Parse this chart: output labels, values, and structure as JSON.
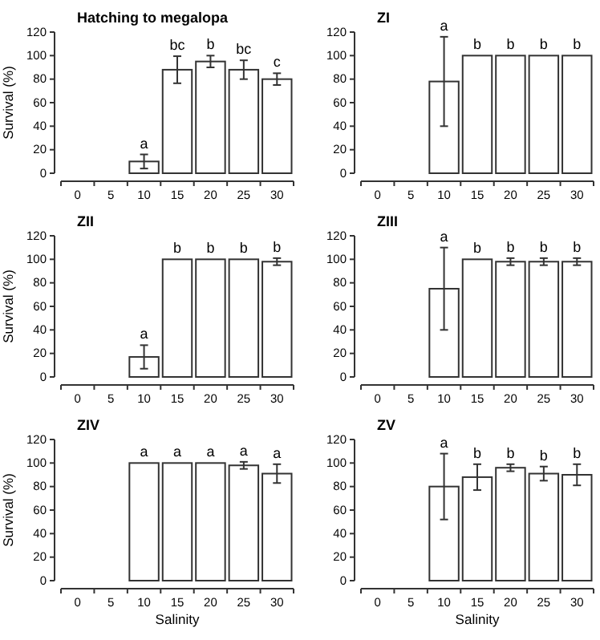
{
  "chart_data": [
    {
      "type": "bar",
      "title": "Hatching to megalopa",
      "ylabel": "Survival (%)",
      "categories": [
        "0",
        "5",
        "10",
        "15",
        "20",
        "25",
        "30"
      ],
      "values": [
        null,
        null,
        10,
        88,
        95,
        88,
        80
      ],
      "errors": [
        null,
        null,
        6,
        11.5,
        5,
        8,
        5
      ],
      "color": "#ffffff",
      "ylim": [
        0,
        120
      ],
      "yticks": [
        0,
        20,
        40,
        60,
        80,
        100,
        120
      ],
      "grid": false,
      "annotations": [
        {
          "text": "a",
          "x": "10",
          "y": 16
        },
        {
          "text": "bc",
          "x": "15",
          "y": 99.5
        },
        {
          "text": "b",
          "x": "20",
          "y": 100
        },
        {
          "text": "bc",
          "x": "25",
          "y": 96
        },
        {
          "text": "c",
          "x": "30",
          "y": 85
        }
      ]
    },
    {
      "type": "bar",
      "title": "ZI",
      "categories": [
        "0",
        "5",
        "10",
        "15",
        "20",
        "25",
        "30"
      ],
      "values": [
        null,
        null,
        78,
        100,
        100,
        100,
        100
      ],
      "errors": [
        null,
        null,
        38,
        null,
        null,
        null,
        null
      ],
      "color": "#ffffff",
      "ylim": [
        0,
        120
      ],
      "yticks": [
        0,
        20,
        40,
        60,
        80,
        100,
        120
      ],
      "grid": false,
      "annotations": [
        {
          "text": "a",
          "x": "10",
          "y": 116
        },
        {
          "text": "b",
          "x": "15",
          "y": 100
        },
        {
          "text": "b",
          "x": "20",
          "y": 100
        },
        {
          "text": "b",
          "x": "25",
          "y": 100
        },
        {
          "text": "b",
          "x": "30",
          "y": 100
        }
      ]
    },
    {
      "type": "bar",
      "title": "ZII",
      "ylabel": "Survival (%)",
      "categories": [
        "0",
        "5",
        "10",
        "15",
        "20",
        "25",
        "30"
      ],
      "values": [
        null,
        null,
        17,
        100,
        100,
        100,
        98
      ],
      "errors": [
        null,
        null,
        10,
        null,
        null,
        null,
        3
      ],
      "color": "#ffffff",
      "ylim": [
        0,
        120
      ],
      "yticks": [
        0,
        20,
        40,
        60,
        80,
        100,
        120
      ],
      "grid": false,
      "annotations": [
        {
          "text": "a",
          "x": "10",
          "y": 27
        },
        {
          "text": "b",
          "x": "15",
          "y": 100
        },
        {
          "text": "b",
          "x": "20",
          "y": 100
        },
        {
          "text": "b",
          "x": "25",
          "y": 100
        },
        {
          "text": "b",
          "x": "30",
          "y": 101
        }
      ]
    },
    {
      "type": "bar",
      "title": "ZIII",
      "categories": [
        "0",
        "5",
        "10",
        "15",
        "20",
        "25",
        "30"
      ],
      "values": [
        null,
        null,
        75,
        100,
        98,
        98,
        98
      ],
      "errors": [
        null,
        null,
        35,
        null,
        3,
        3,
        3
      ],
      "color": "#ffffff",
      "ylim": [
        0,
        120
      ],
      "yticks": [
        0,
        20,
        40,
        60,
        80,
        100,
        120
      ],
      "grid": false,
      "annotations": [
        {
          "text": "a",
          "x": "10",
          "y": 110
        },
        {
          "text": "b",
          "x": "15",
          "y": 100
        },
        {
          "text": "b",
          "x": "20",
          "y": 101
        },
        {
          "text": "b",
          "x": "25",
          "y": 101
        },
        {
          "text": "b",
          "x": "30",
          "y": 101
        }
      ]
    },
    {
      "type": "bar",
      "title": "ZIV",
      "xlabel": "Salinity",
      "ylabel": "Survival (%)",
      "categories": [
        "0",
        "5",
        "10",
        "15",
        "20",
        "25",
        "30"
      ],
      "values": [
        null,
        null,
        100,
        100,
        100,
        98,
        91
      ],
      "errors": [
        null,
        null,
        null,
        null,
        null,
        3,
        8
      ],
      "color": "#ffffff",
      "ylim": [
        0,
        120
      ],
      "yticks": [
        0,
        20,
        40,
        60,
        80,
        100,
        120
      ],
      "grid": false,
      "annotations": [
        {
          "text": "a",
          "x": "10",
          "y": 100
        },
        {
          "text": "a",
          "x": "15",
          "y": 100
        },
        {
          "text": "a",
          "x": "20",
          "y": 100
        },
        {
          "text": "a",
          "x": "25",
          "y": 101
        },
        {
          "text": "a",
          "x": "30",
          "y": 99
        }
      ]
    },
    {
      "type": "bar",
      "title": "ZV",
      "xlabel": "Salinity",
      "categories": [
        "0",
        "5",
        "10",
        "15",
        "20",
        "25",
        "30"
      ],
      "values": [
        null,
        null,
        80,
        88,
        96,
        91,
        90
      ],
      "errors": [
        null,
        null,
        28,
        11,
        3,
        6,
        9
      ],
      "color": "#ffffff",
      "ylim": [
        0,
        120
      ],
      "yticks": [
        0,
        20,
        40,
        60,
        80,
        100,
        120
      ],
      "grid": false,
      "annotations": [
        {
          "text": "a",
          "x": "10",
          "y": 108
        },
        {
          "text": "b",
          "x": "15",
          "y": 99
        },
        {
          "text": "b",
          "x": "20",
          "y": 99
        },
        {
          "text": "b",
          "x": "25",
          "y": 97
        },
        {
          "text": "b",
          "x": "30",
          "y": 99
        }
      ]
    }
  ]
}
